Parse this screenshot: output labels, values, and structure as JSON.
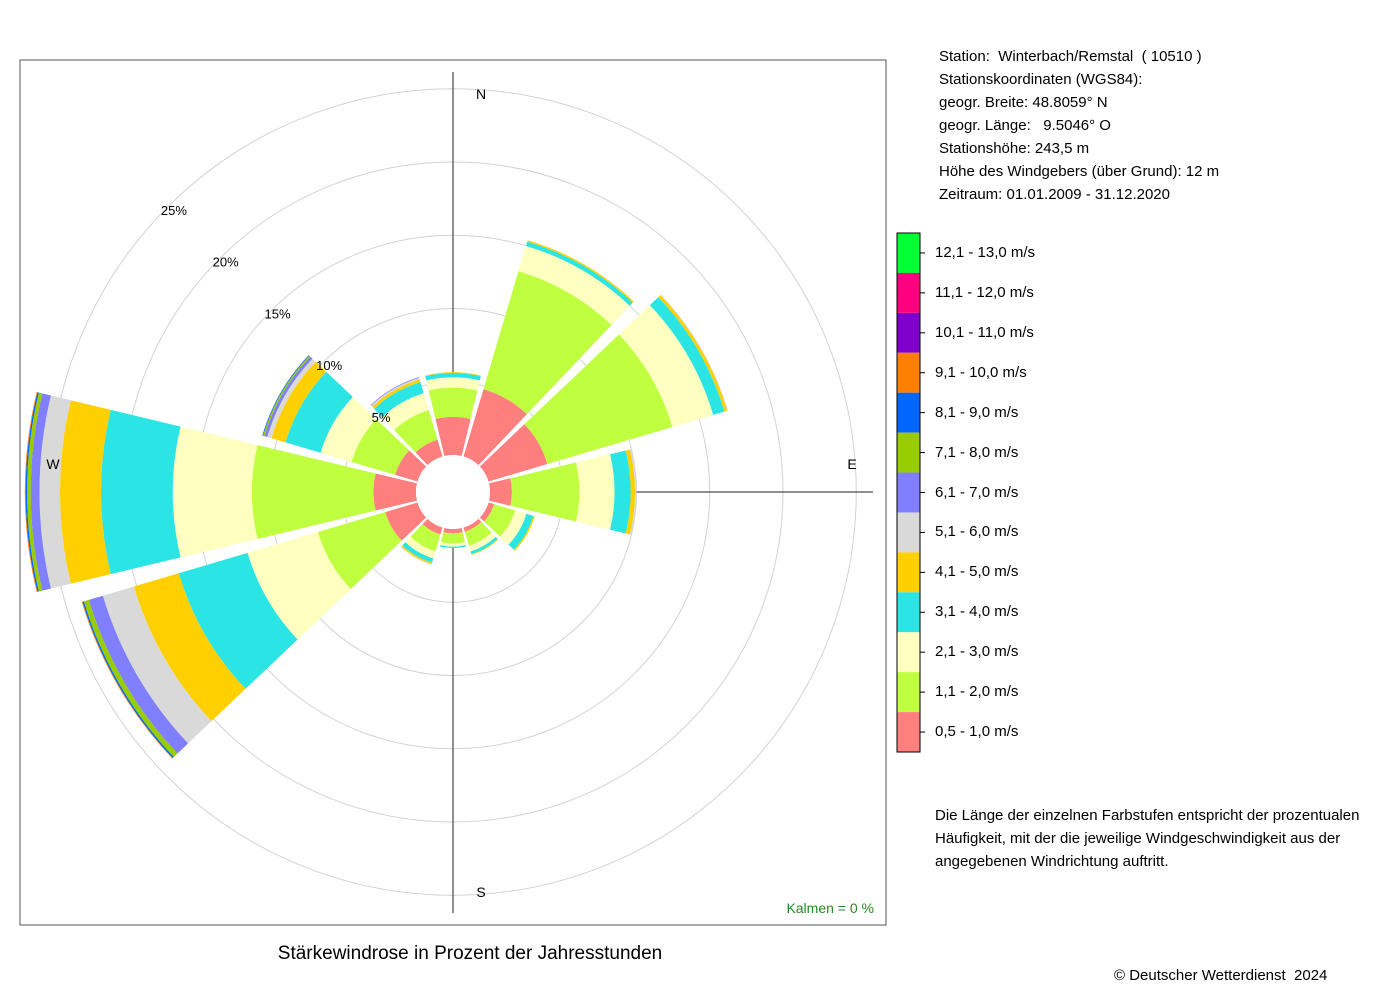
{
  "info": {
    "station": "Station:  Winterbach/Remstal  ( 10510 )",
    "coords_title": "Stationskoordinaten (WGS84):",
    "lat": "geogr. Breite: 48.8059° N",
    "lon": "geogr. Länge:   9.5046° O",
    "altitude": "Stationshöhe: 243,5 m",
    "sensor_height": "Höhe des Windgebers (über Grund): 12 m",
    "period": "Zeitraum: 01.01.2009 - 31.12.2020"
  },
  "note": "Die Länge der einzelnen Farbstufen entspricht der prozentualen Häufigkeit, mit der die jeweilige Windgeschwindigkeit aus der angegebenen Windrichtung auftritt.",
  "caption": "Stärkewindrose in Prozent der Jahresstunden",
  "copyright": "© Deutscher Wetterdienst  2024",
  "calm": "Kalmen  =  0 %",
  "directions": {
    "N": "N",
    "E": "E",
    "S": "S",
    "W": "W"
  },
  "colors": {
    "calm": "#228B22",
    "grid": "#d3d3d3",
    "axis": "#000000"
  },
  "chart_data": {
    "type": "windrose",
    "title": "Stärkewindrose in Prozent der Jahresstunden",
    "unit": "%",
    "rings": [
      5,
      10,
      15,
      20,
      25
    ],
    "ring_labels": [
      "5%",
      "10%",
      "15%",
      "20%",
      "25%"
    ],
    "sectors_deg": [
      0,
      30,
      60,
      90,
      120,
      150,
      180,
      210,
      240,
      270,
      300,
      330
    ],
    "classes": [
      {
        "label": "0,5 - 1,0 m/s",
        "color": "#FF7F7F"
      },
      {
        "label": "1,1 - 2,0 m/s",
        "color": "#BFFF3F"
      },
      {
        "label": "2,1 - 3,0 m/s",
        "color": "#FFFFBF"
      },
      {
        "label": "3,1 - 4,0 m/s",
        "color": "#2BE5E5"
      },
      {
        "label": "4,1 - 5,0 m/s",
        "color": "#FFD000"
      },
      {
        "label": "5,1 - 6,0 m/s",
        "color": "#D9D9D9"
      },
      {
        "label": "6,1 - 7,0 m/s",
        "color": "#7F7FFF"
      },
      {
        "label": "7,1 - 8,0 m/s",
        "color": "#99CC00"
      },
      {
        "label": "8,1 - 9,0 m/s",
        "color": "#0066FF"
      },
      {
        "label": "9,1 - 10,0 m/s",
        "color": "#FF8000"
      },
      {
        "label": "10,1 - 11,0 m/s",
        "color": "#8000CC"
      },
      {
        "label": "11,1 - 12,0 m/s",
        "color": "#FF0080"
      },
      {
        "label": "12,1 - 13,0 m/s",
        "color": "#00FF33"
      }
    ],
    "values": [
      [
        2.6,
        2.0,
        0.7,
        0.3,
        0.05,
        0,
        0,
        0,
        0,
        0,
        0,
        0,
        0
      ],
      [
        4.8,
        8.4,
        1.8,
        0.3,
        0.1,
        0,
        0,
        0,
        0,
        0,
        0,
        0,
        0
      ],
      [
        4.2,
        8.9,
        2.9,
        0.8,
        0.2,
        0.05,
        0,
        0,
        0,
        0,
        0,
        0,
        0
      ],
      [
        1.5,
        4.6,
        2.4,
        1.1,
        0.3,
        0.1,
        0,
        0,
        0,
        0,
        0,
        0,
        0
      ],
      [
        0.4,
        1.5,
        0.8,
        0.5,
        0.1,
        0,
        0,
        0,
        0,
        0,
        0,
        0,
        0
      ],
      [
        0.3,
        1.0,
        0.4,
        0.2,
        0.05,
        0,
        0,
        0,
        0,
        0,
        0,
        0,
        0
      ],
      [
        0.3,
        0.7,
        0.2,
        0.1,
        0,
        0,
        0,
        0,
        0,
        0,
        0,
        0,
        0
      ],
      [
        0.5,
        1.2,
        0.5,
        0.3,
        0.1,
        0.05,
        0,
        0,
        0,
        0,
        0,
        0,
        0
      ],
      [
        2.3,
        4.8,
        5.0,
        4.9,
        3.2,
        2.2,
        1.0,
        0.35,
        0.1,
        0.05,
        0,
        0,
        0
      ],
      [
        2.9,
        8.3,
        5.4,
        4.9,
        2.8,
        1.4,
        0.6,
        0.25,
        0.1,
        0.05,
        0,
        0,
        0
      ],
      [
        1.6,
        3.1,
        2.2,
        2.5,
        1.0,
        0.3,
        0.2,
        0.1,
        0.05,
        0,
        0,
        0,
        0
      ],
      [
        1.2,
        2.1,
        1.2,
        0.8,
        0.2,
        0.1,
        0.05,
        0,
        0,
        0,
        0,
        0,
        0
      ]
    ]
  }
}
